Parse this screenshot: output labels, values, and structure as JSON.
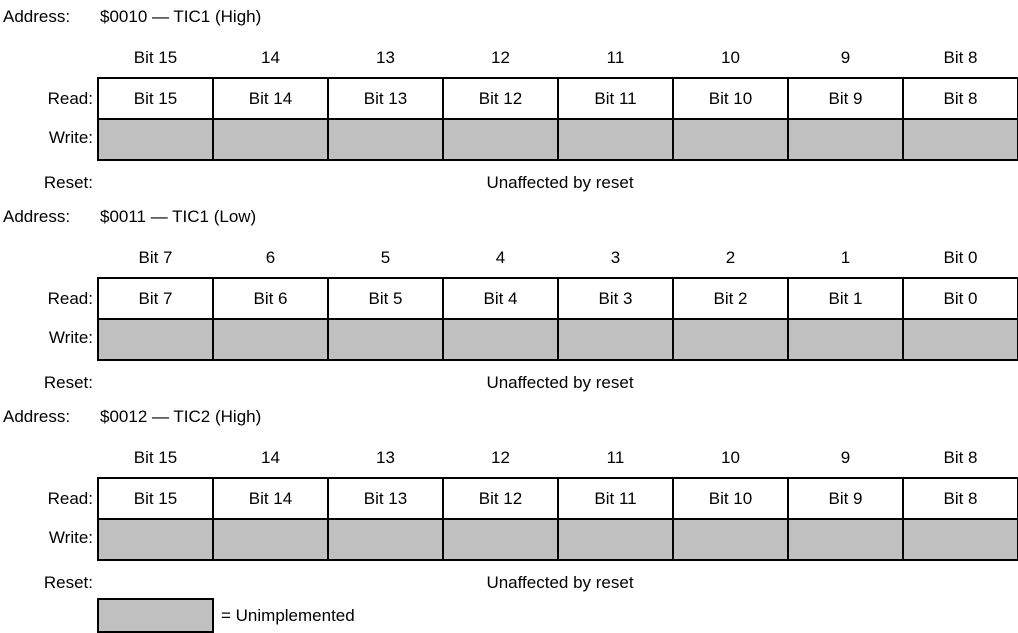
{
  "registers": [
    {
      "address_label": "Address:",
      "address": "$0010 — TIC1 (High)",
      "bit_numbers": [
        "Bit 15",
        "14",
        "13",
        "12",
        "11",
        "10",
        "9",
        "Bit 8"
      ],
      "read_label": "Read:",
      "read_cells": [
        "Bit 15",
        "Bit 14",
        "Bit 13",
        "Bit 12",
        "Bit 11",
        "Bit 10",
        "Bit 9",
        "Bit 8"
      ],
      "write_label": "Write:",
      "reset_label": "Reset:",
      "reset_value": "Unaffected by reset"
    },
    {
      "address_label": "Address:",
      "address": "$0011 — TIC1 (Low)",
      "bit_numbers": [
        "Bit 7",
        "6",
        "5",
        "4",
        "3",
        "2",
        "1",
        "Bit 0"
      ],
      "read_label": "Read:",
      "read_cells": [
        "Bit 7",
        "Bit 6",
        "Bit 5",
        "Bit 4",
        "Bit 3",
        "Bit 2",
        "Bit 1",
        "Bit 0"
      ],
      "write_label": "Write:",
      "reset_label": "Reset:",
      "reset_value": "Unaffected by reset"
    },
    {
      "address_label": "Address:",
      "address": "$0012 — TIC2 (High)",
      "bit_numbers": [
        "Bit 15",
        "14",
        "13",
        "12",
        "11",
        "10",
        "9",
        "Bit 8"
      ],
      "read_label": "Read:",
      "read_cells": [
        "Bit 15",
        "Bit 14",
        "Bit 13",
        "Bit 12",
        "Bit 11",
        "Bit 10",
        "Bit 9",
        "Bit 8"
      ],
      "write_label": "Write:",
      "reset_label": "Reset:",
      "reset_value": "Unaffected by reset"
    }
  ],
  "legend": {
    "text": "= Unimplemented"
  },
  "colors": {
    "unimplemented": "#c0c0c0",
    "border": "#000000"
  }
}
